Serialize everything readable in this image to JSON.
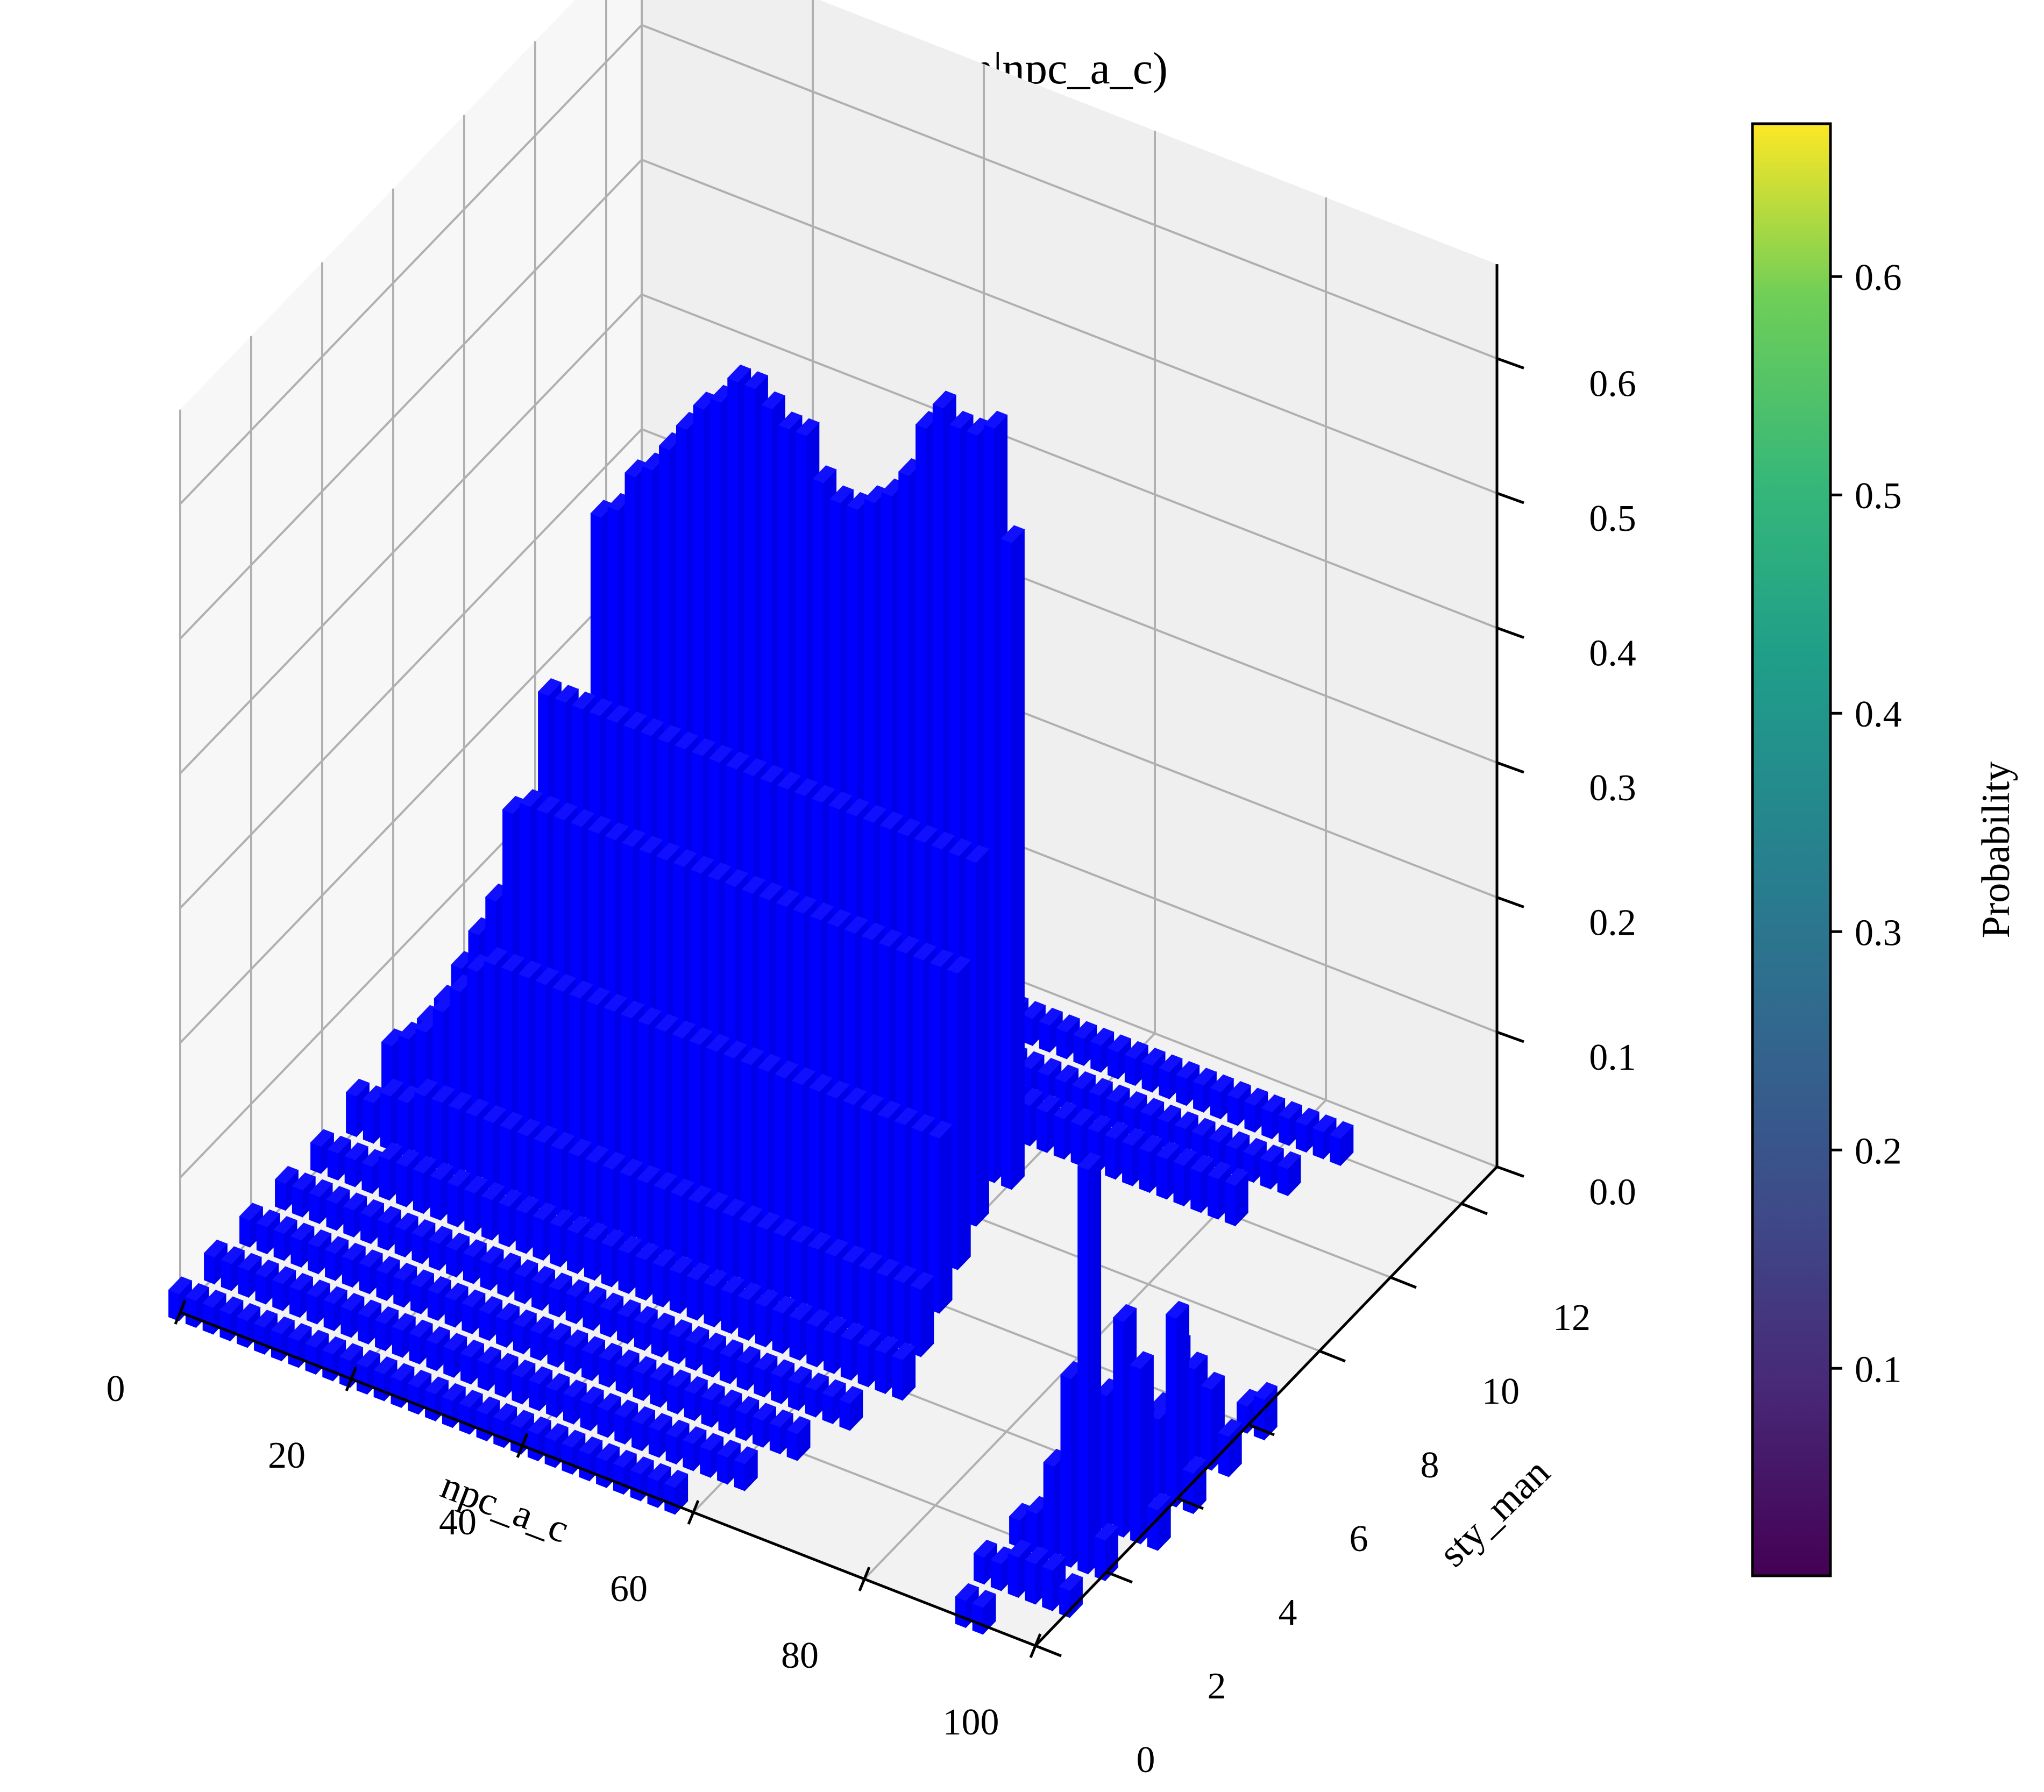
{
  "chart_data": {
    "type": "bar3d",
    "title": "Distribution of P(sty_man|npc_a_c)",
    "xlabel": "npc_a_c",
    "ylabel": "sty_man",
    "zlabel": "",
    "colorbar_label": "Probability",
    "x_ticks": [
      "0",
      "20",
      "40",
      "60",
      "80",
      "100"
    ],
    "y_ticks": [
      "0",
      "2",
      "4",
      "6",
      "8",
      "10",
      "12"
    ],
    "z_ticks": [
      "0.0",
      "0.1",
      "0.2",
      "0.3",
      "0.4",
      "0.5",
      "0.6"
    ],
    "colorbar_ticks": [
      "0.1",
      "0.2",
      "0.3",
      "0.4",
      "0.5",
      "0.6"
    ],
    "xlim": [
      0,
      100
    ],
    "ylim": [
      0,
      13
    ],
    "zlim": [
      0,
      0.67
    ],
    "colorbar_range": [
      0.005,
      0.67
    ],
    "colormap": "viridis",
    "bar_color": "#0000ff",
    "grid": true,
    "colorbar_placement": "right",
    "series": [
      {
        "y": 0,
        "x": [
          0,
          2,
          4,
          6,
          8,
          10,
          12,
          14,
          16,
          18,
          20,
          22,
          24,
          26,
          28,
          30,
          32,
          34,
          36,
          38,
          40,
          42,
          44,
          46,
          48,
          50,
          52,
          54,
          56,
          58
        ],
        "values": [
          0.02,
          0.02,
          0.02,
          0.02,
          0.02,
          0.02,
          0.02,
          0.02,
          0.02,
          0.02,
          0.02,
          0.02,
          0.02,
          0.02,
          0.02,
          0.02,
          0.02,
          0.02,
          0.02,
          0.02,
          0.02,
          0.02,
          0.02,
          0.02,
          0.02,
          0.02,
          0.02,
          0.02,
          0.02,
          0.02
        ]
      },
      {
        "y": 1,
        "x": [
          0,
          2,
          4,
          6,
          8,
          10,
          12,
          14,
          16,
          18,
          20,
          22,
          24,
          26,
          28,
          30,
          32,
          34,
          36,
          38,
          40,
          42,
          44,
          46,
          48,
          50,
          52,
          54,
          56,
          58,
          60,
          62
        ],
        "values": [
          0.02,
          0.02,
          0.02,
          0.02,
          0.02,
          0.02,
          0.02,
          0.02,
          0.02,
          0.02,
          0.02,
          0.02,
          0.02,
          0.02,
          0.02,
          0.02,
          0.02,
          0.02,
          0.02,
          0.02,
          0.02,
          0.02,
          0.02,
          0.02,
          0.02,
          0.02,
          0.02,
          0.02,
          0.02,
          0.02,
          0.02,
          0.02
        ]
      },
      {
        "y": 2,
        "x": [
          0,
          2,
          4,
          6,
          8,
          10,
          12,
          14,
          16,
          18,
          20,
          22,
          24,
          26,
          28,
          30,
          32,
          34,
          36,
          38,
          40,
          42,
          44,
          46,
          48,
          50,
          52,
          54,
          56,
          58,
          60,
          62,
          64
        ],
        "values": [
          0.02,
          0.02,
          0.02,
          0.02,
          0.02,
          0.02,
          0.02,
          0.02,
          0.02,
          0.02,
          0.02,
          0.02,
          0.02,
          0.02,
          0.02,
          0.02,
          0.02,
          0.02,
          0.02,
          0.02,
          0.02,
          0.02,
          0.02,
          0.02,
          0.02,
          0.02,
          0.02,
          0.02,
          0.02,
          0.02,
          0.02,
          0.02,
          0.02
        ]
      },
      {
        "y": 3,
        "x": [
          0,
          2,
          4,
          6,
          8,
          10,
          12,
          14,
          16,
          18,
          20,
          22,
          24,
          26,
          28,
          30,
          32,
          34,
          36,
          38,
          40,
          42,
          44,
          46,
          48,
          50,
          52,
          54,
          56,
          58,
          60,
          62,
          64,
          66
        ],
        "values": [
          0.02,
          0.02,
          0.02,
          0.02,
          0.02,
          0.02,
          0.02,
          0.02,
          0.02,
          0.02,
          0.02,
          0.02,
          0.02,
          0.02,
          0.02,
          0.02,
          0.02,
          0.02,
          0.02,
          0.02,
          0.02,
          0.02,
          0.02,
          0.02,
          0.02,
          0.02,
          0.02,
          0.02,
          0.02,
          0.02,
          0.02,
          0.02,
          0.02,
          0.02
        ]
      },
      {
        "y": 4,
        "x": [
          0,
          2,
          4,
          6,
          8,
          10,
          12,
          14,
          16,
          18,
          20,
          22,
          24,
          26,
          28,
          30,
          32,
          34,
          36,
          38,
          40,
          42,
          44,
          46,
          48,
          50,
          52,
          54,
          56,
          58,
          60,
          62,
          64,
          66,
          68
        ],
        "values": [
          0.02,
          0.02,
          0.02,
          0.02,
          0.03,
          0.03,
          0.03,
          0.03,
          0.03,
          0.03,
          0.03,
          0.03,
          0.03,
          0.03,
          0.03,
          0.03,
          0.03,
          0.03,
          0.03,
          0.03,
          0.03,
          0.03,
          0.03,
          0.03,
          0.03,
          0.03,
          0.03,
          0.03,
          0.03,
          0.03,
          0.03,
          0.03,
          0.03,
          0.03,
          0.03
        ]
      },
      {
        "y": 5,
        "x": [
          0,
          2,
          4,
          6,
          8,
          10,
          12,
          14,
          16,
          18,
          20,
          22,
          24,
          26,
          28,
          30,
          32,
          34,
          36,
          38,
          40,
          42,
          44,
          46,
          48,
          50,
          52,
          54,
          56,
          58,
          60,
          62,
          64,
          66
        ],
        "values": [
          0.03,
          0.03,
          0.04,
          0.04,
          0.05,
          0.05,
          0.05,
          0.05,
          0.05,
          0.05,
          0.05,
          0.05,
          0.05,
          0.05,
          0.05,
          0.05,
          0.05,
          0.05,
          0.05,
          0.05,
          0.05,
          0.05,
          0.05,
          0.05,
          0.05,
          0.05,
          0.05,
          0.05,
          0.05,
          0.05,
          0.05,
          0.05,
          0.05,
          0.05
        ]
      },
      {
        "y": 6,
        "x": [
          0,
          2,
          4,
          6,
          8,
          10,
          12,
          14,
          16,
          18,
          20,
          22,
          24,
          26,
          28,
          30,
          32,
          34,
          36,
          38,
          40,
          42,
          44,
          46,
          48,
          50,
          52,
          54,
          56,
          58,
          60,
          62,
          64
        ],
        "values": [
          0.04,
          0.05,
          0.06,
          0.08,
          0.1,
          0.12,
          0.13,
          0.13,
          0.13,
          0.13,
          0.13,
          0.13,
          0.13,
          0.13,
          0.13,
          0.13,
          0.13,
          0.13,
          0.13,
          0.13,
          0.13,
          0.13,
          0.13,
          0.13,
          0.13,
          0.13,
          0.13,
          0.13,
          0.13,
          0.13,
          0.13,
          0.13,
          0.13
        ]
      },
      {
        "y": 7,
        "x": [
          0,
          2,
          4,
          6,
          8,
          10,
          12,
          14,
          16,
          18,
          20,
          22,
          24,
          26,
          28,
          30,
          32,
          34,
          36,
          38,
          40,
          42,
          44,
          46,
          48,
          50,
          52,
          54,
          56,
          58,
          60,
          62
        ],
        "values": [
          0.03,
          0.05,
          0.08,
          0.11,
          0.14,
          0.21,
          0.22,
          0.22,
          0.22,
          0.22,
          0.22,
          0.22,
          0.22,
          0.22,
          0.22,
          0.22,
          0.22,
          0.22,
          0.22,
          0.22,
          0.22,
          0.22,
          0.22,
          0.22,
          0.22,
          0.22,
          0.22,
          0.22,
          0.22,
          0.22,
          0.22,
          0.22
        ]
      },
      {
        "y": 8,
        "x": [
          0,
          2,
          4,
          6,
          8,
          10,
          12,
          14,
          16,
          18,
          20,
          22,
          24,
          26,
          28,
          30,
          32,
          34,
          36,
          38,
          40,
          42,
          44,
          46,
          48,
          50,
          52,
          54,
          56,
          58,
          60
        ],
        "values": [
          0.03,
          0.04,
          0.06,
          0.08,
          0.12,
          0.27,
          0.27,
          0.27,
          0.27,
          0.27,
          0.27,
          0.27,
          0.27,
          0.27,
          0.27,
          0.27,
          0.27,
          0.27,
          0.27,
          0.27,
          0.27,
          0.27,
          0.27,
          0.27,
          0.27,
          0.27,
          0.27,
          0.27,
          0.27,
          0.27,
          0.27
        ]
      },
      {
        "y": 9,
        "x": [
          0,
          2,
          4,
          6,
          8,
          10,
          12,
          14,
          16,
          18,
          20,
          22,
          24,
          26,
          28,
          30,
          32,
          34,
          36,
          38,
          40,
          42,
          44,
          46,
          48,
          50,
          52,
          54,
          56,
          58,
          60
        ],
        "values": [
          0.02,
          0.03,
          0.04,
          0.05,
          0.06,
          0.08,
          0.38,
          0.39,
          0.42,
          0.43,
          0.45,
          0.47,
          0.49,
          0.5,
          0.52,
          0.52,
          0.51,
          0.5,
          0.5,
          0.47,
          0.46,
          0.46,
          0.47,
          0.48,
          0.5,
          0.54,
          0.56,
          0.55,
          0.55,
          0.56,
          0.48
        ]
      },
      {
        "y": 10,
        "x": [
          0,
          2,
          4,
          6,
          8,
          10,
          12,
          14,
          16,
          18,
          20,
          22,
          24,
          26,
          28,
          30,
          32,
          34,
          36,
          38,
          40,
          42,
          44,
          46,
          48,
          50,
          52,
          54,
          56,
          58,
          60,
          62,
          64,
          66,
          68,
          70,
          72,
          74,
          76,
          78,
          80,
          82
        ],
        "values": [
          0.02,
          0.02,
          0.02,
          0.02,
          0.02,
          0.02,
          0.03,
          0.03,
          0.03,
          0.03,
          0.03,
          0.03,
          0.03,
          0.03,
          0.03,
          0.03,
          0.03,
          0.03,
          0.03,
          0.03,
          0.03,
          0.03,
          0.03,
          0.03,
          0.03,
          0.03,
          0.03,
          0.03,
          0.03,
          0.03,
          0.03,
          0.03,
          0.03,
          0.03,
          0.03,
          0.03,
          0.03,
          0.03,
          0.03,
          0.03,
          0.03,
          0.03
        ]
      },
      {
        "y": 11,
        "x": [
          0,
          2,
          4,
          6,
          8,
          10,
          12,
          14,
          16,
          18,
          20,
          22,
          24,
          26,
          28,
          30,
          32,
          34,
          36,
          38,
          40,
          42,
          44,
          46,
          48,
          50,
          52,
          54,
          56,
          58,
          60,
          62,
          64,
          66,
          68,
          70,
          72,
          74,
          76,
          78,
          80,
          82,
          84
        ],
        "values": [
          0.02,
          0.02,
          0.02,
          0.02,
          0.02,
          0.02,
          0.02,
          0.02,
          0.02,
          0.02,
          0.02,
          0.02,
          0.02,
          0.02,
          0.02,
          0.02,
          0.02,
          0.02,
          0.02,
          0.02,
          0.02,
          0.02,
          0.02,
          0.02,
          0.02,
          0.02,
          0.02,
          0.02,
          0.02,
          0.02,
          0.02,
          0.02,
          0.02,
          0.02,
          0.02,
          0.02,
          0.02,
          0.02,
          0.02,
          0.02,
          0.02,
          0.02,
          0.02
        ]
      },
      {
        "y": 12,
        "x": [
          0,
          2,
          4,
          6,
          8,
          10,
          12,
          14,
          16,
          18,
          20,
          22,
          24,
          26,
          28,
          30,
          32,
          34,
          36,
          38,
          40,
          42,
          44,
          46,
          48,
          50,
          52,
          54,
          56,
          58,
          60,
          62,
          64,
          66,
          68,
          70,
          72,
          74,
          76,
          78,
          80,
          82,
          84,
          86
        ],
        "values": [
          0.02,
          0.02,
          0.02,
          0.02,
          0.02,
          0.02,
          0.02,
          0.02,
          0.02,
          0.02,
          0.02,
          0.02,
          0.02,
          0.02,
          0.02,
          0.02,
          0.02,
          0.02,
          0.02,
          0.02,
          0.02,
          0.02,
          0.02,
          0.02,
          0.02,
          0.02,
          0.02,
          0.02,
          0.02,
          0.02,
          0.02,
          0.02,
          0.02,
          0.02,
          0.02,
          0.02,
          0.02,
          0.02,
          0.02,
          0.02,
          0.02,
          0.02,
          0.02,
          0.02
        ]
      },
      {
        "y": 0,
        "x": [
          92,
          94
        ],
        "values": [
          0.02,
          0.02
        ]
      },
      {
        "y": 1,
        "x": [
          90,
          92,
          94,
          96,
          98,
          100
        ],
        "values": [
          0.02,
          0.02,
          0.03,
          0.03,
          0.03,
          0.02
        ]
      },
      {
        "y": 2,
        "x": [
          90,
          92,
          94,
          96,
          98,
          100
        ],
        "values": [
          0.02,
          0.03,
          0.07,
          0.14,
          0.3,
          0.03
        ]
      },
      {
        "y": 3,
        "x": [
          94,
          96,
          98,
          100,
          102
        ],
        "values": [
          0.03,
          0.1,
          0.16,
          0.13,
          0.03
        ]
      },
      {
        "y": 4,
        "x": [
          96,
          98,
          100,
          102
        ],
        "values": [
          0.04,
          0.06,
          0.14,
          0.03
        ]
      },
      {
        "y": 5,
        "x": [
          94,
          96,
          98,
          100,
          102
        ],
        "values": [
          0.03,
          0.08,
          0.07,
          0.06,
          0.03
        ]
      },
      {
        "y": 6,
        "x": [
          100,
          102
        ],
        "values": [
          0.02,
          0.03
        ]
      }
    ]
  }
}
